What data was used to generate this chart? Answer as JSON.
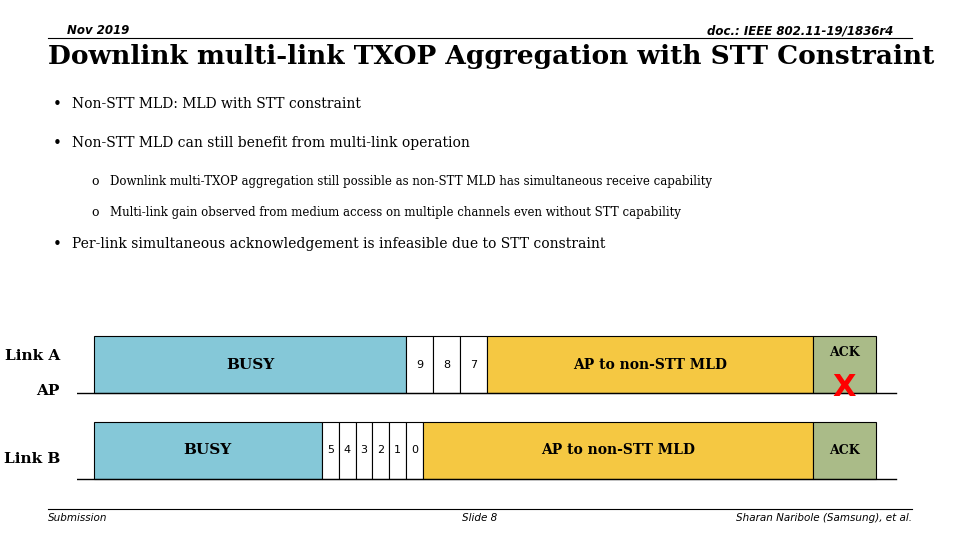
{
  "bg_color": "#ffffff",
  "header_left": "Nov 2019",
  "header_right": "doc.: IEEE 802.11-19/1836r4",
  "title": "Downlink multi-link TXOP Aggregation with STT Constraint",
  "bullets": [
    {
      "level": 1,
      "text": "Non-STT MLD: MLD with STT constraint"
    },
    {
      "level": 1,
      "text": "Non-STT MLD can still benefit from multi-link operation"
    },
    {
      "level": 2,
      "text": "Downlink multi-TXOP aggregation still possible as non-STT MLD has simultaneous receive capability"
    },
    {
      "level": 2,
      "text": "Multi-link gain observed from medium access on multiple channels even without STT capability"
    },
    {
      "level": 1,
      "text": "Per-link simultaneous acknowledgement is infeasible due to STT constraint"
    }
  ],
  "footer_left": "Submission",
  "footer_center": "Slide 8",
  "footer_right": "Sharan Naribole (Samsung), et al.",
  "diagram": {
    "link_a_label": "Link A",
    "link_b_label": "Link B",
    "ap_label": "AP",
    "busy_color": "#85C8D8",
    "ap_to_mld_color": "#F5C842",
    "ack_color": "#AABB88",
    "busy_text": "BUSY",
    "ap_to_mld_text": "AP to non-STT MLD",
    "ack_text": "ACK",
    "countdown_a": [
      "9",
      "8",
      "7"
    ],
    "countdown_b": [
      "5",
      "4",
      "3",
      "2",
      "1",
      "0"
    ]
  }
}
